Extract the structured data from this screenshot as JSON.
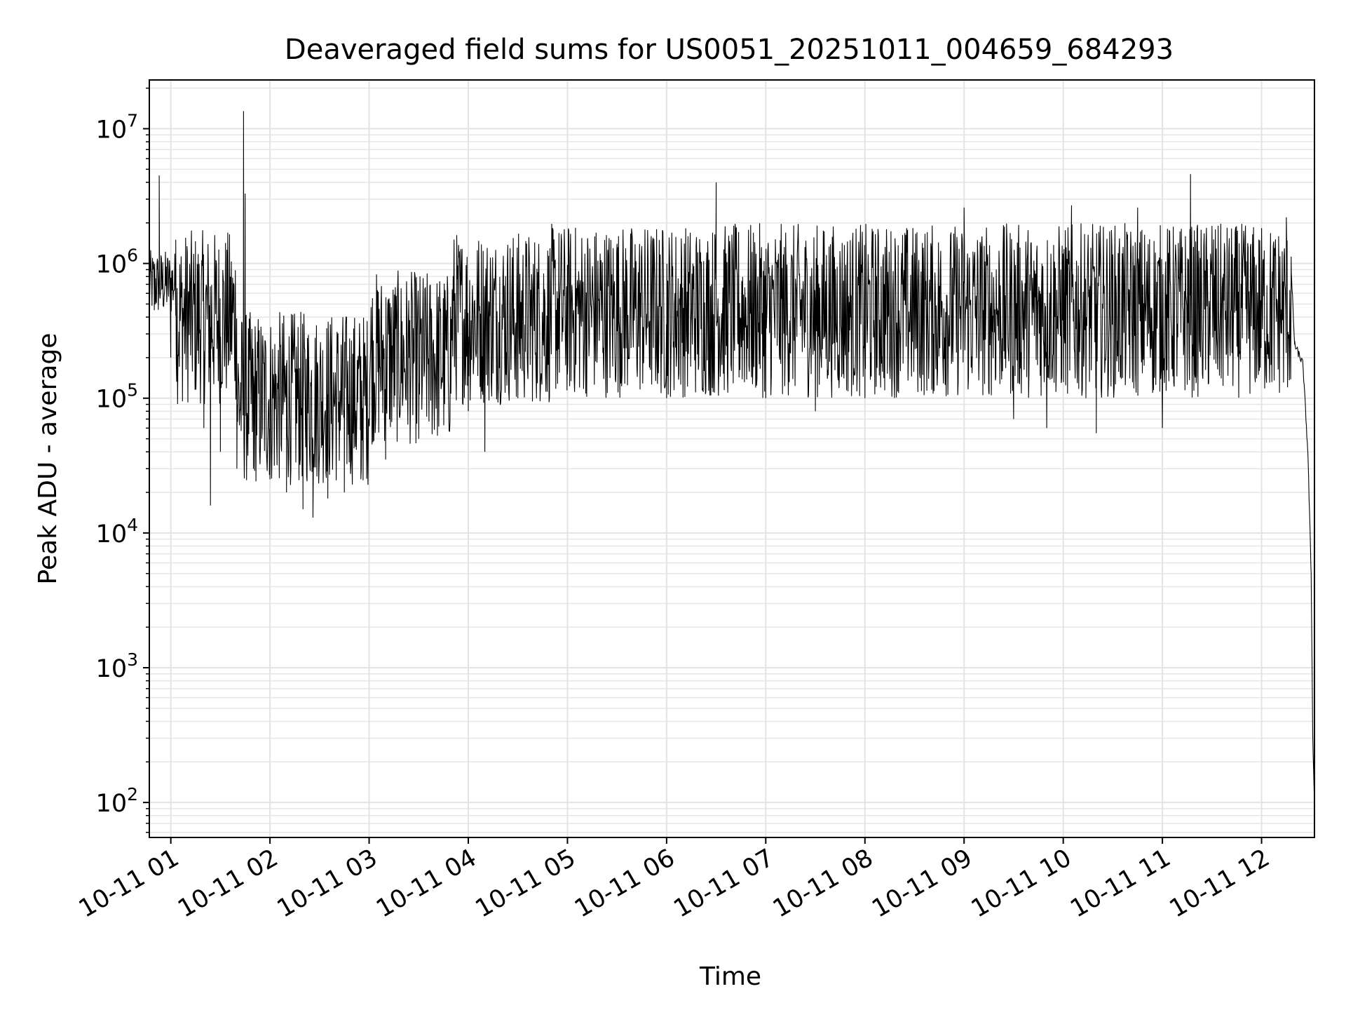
{
  "chart_data": {
    "type": "line",
    "title": "Deaveraged field sums for US0051_20251011_004659_684293",
    "xlabel": "Time",
    "ylabel": "Peak ADU - average",
    "yscale": "log",
    "ylim": [
      55,
      23000000
    ],
    "xlim": [
      "2025-10-11 00:47",
      "2025-10-11 12:32"
    ],
    "grid": true,
    "line_color": "#000000",
    "x_ticks": [
      {
        "value": "2025-10-11 01:00",
        "label": "10-11 01"
      },
      {
        "value": "2025-10-11 02:00",
        "label": "10-11 02"
      },
      {
        "value": "2025-10-11 03:00",
        "label": "10-11 03"
      },
      {
        "value": "2025-10-11 04:00",
        "label": "10-11 04"
      },
      {
        "value": "2025-10-11 05:00",
        "label": "10-11 05"
      },
      {
        "value": "2025-10-11 06:00",
        "label": "10-11 06"
      },
      {
        "value": "2025-10-11 07:00",
        "label": "10-11 07"
      },
      {
        "value": "2025-10-11 08:00",
        "label": "10-11 08"
      },
      {
        "value": "2025-10-11 09:00",
        "label": "10-11 09"
      },
      {
        "value": "2025-10-11 10:00",
        "label": "10-11 10"
      },
      {
        "value": "2025-10-11 11:00",
        "label": "10-11 11"
      },
      {
        "value": "2025-10-11 12:00",
        "label": "10-11 12"
      }
    ],
    "y_ticks": [
      {
        "value": 100,
        "base": "10",
        "exp": "2"
      },
      {
        "value": 1000,
        "base": "10",
        "exp": "3"
      },
      {
        "value": 10000,
        "base": "10",
        "exp": "4"
      },
      {
        "value": 100000,
        "base": "10",
        "exp": "5"
      },
      {
        "value": 1000000,
        "base": "10",
        "exp": "6"
      },
      {
        "value": 10000000,
        "base": "10",
        "exp": "7"
      }
    ],
    "series": [
      {
        "points": [
          [
            "2025-10-11 00:47",
            270000
          ],
          [
            "2025-10-11 00:50",
            450000
          ],
          [
            "2025-10-11 00:52",
            900000
          ],
          [
            "2025-10-11 00:53",
            4500000
          ],
          [
            "2025-10-11 00:54",
            800000
          ],
          [
            "2025-10-11 00:58",
            1100000
          ],
          [
            "2025-10-11 01:00",
            200000
          ],
          [
            "2025-10-11 01:03",
            1500000
          ],
          [
            "2025-10-11 01:10",
            1200000
          ],
          [
            "2025-10-11 01:15",
            150000
          ],
          [
            "2025-10-11 01:20",
            60000
          ],
          [
            "2025-10-11 01:24",
            16000
          ],
          [
            "2025-10-11 01:30",
            40000
          ],
          [
            "2025-10-11 01:40",
            30000
          ],
          [
            "2025-10-11 01:44",
            13500000
          ],
          [
            "2025-10-11 01:45",
            3300000
          ],
          [
            "2025-10-11 01:50",
            30000
          ],
          [
            "2025-10-11 02:00",
            25000
          ],
          [
            "2025-10-11 02:10",
            20000
          ],
          [
            "2025-10-11 02:20",
            15000
          ],
          [
            "2025-10-11 02:26",
            13000
          ],
          [
            "2025-10-11 02:35",
            18000
          ],
          [
            "2025-10-11 02:45",
            20000
          ],
          [
            "2025-10-11 02:55",
            25000
          ],
          [
            "2025-10-11 03:10",
            35000
          ],
          [
            "2025-10-11 03:30",
            50000
          ],
          [
            "2025-10-11 04:00",
            80000
          ],
          [
            "2025-10-11 04:10",
            40000
          ],
          [
            "2025-10-11 04:30",
            100000
          ],
          [
            "2025-10-11 05:00",
            150000
          ],
          [
            "2025-10-11 05:30",
            1400000
          ],
          [
            "2025-10-11 06:00",
            100000
          ],
          [
            "2025-10-11 06:30",
            4000000
          ],
          [
            "2025-10-11 07:00",
            100000
          ],
          [
            "2025-10-11 07:30",
            80000
          ],
          [
            "2025-10-11 08:00",
            100000
          ],
          [
            "2025-10-11 08:30",
            1200000
          ],
          [
            "2025-10-11 09:00",
            2600000
          ],
          [
            "2025-10-11 09:30",
            70000
          ],
          [
            "2025-10-11 09:50",
            60000
          ],
          [
            "2025-10-11 10:05",
            2700000
          ],
          [
            "2025-10-11 10:20",
            55000
          ],
          [
            "2025-10-11 10:45",
            2600000
          ],
          [
            "2025-10-11 11:00",
            60000
          ],
          [
            "2025-10-11 11:17",
            4600000
          ],
          [
            "2025-10-11 11:30",
            1900000
          ],
          [
            "2025-10-11 11:50",
            1500000
          ],
          [
            "2025-10-11 12:15",
            2200000
          ],
          [
            "2025-10-11 12:18",
            850000
          ],
          [
            "2025-10-11 12:20",
            250000
          ],
          [
            "2025-10-11 12:25",
            180000
          ],
          [
            "2025-10-11 12:28",
            40000
          ],
          [
            "2025-10-11 12:30",
            5000
          ],
          [
            "2025-10-11 12:31",
            300
          ],
          [
            "2025-10-11 12:32",
            90
          ]
        ]
      }
    ]
  }
}
